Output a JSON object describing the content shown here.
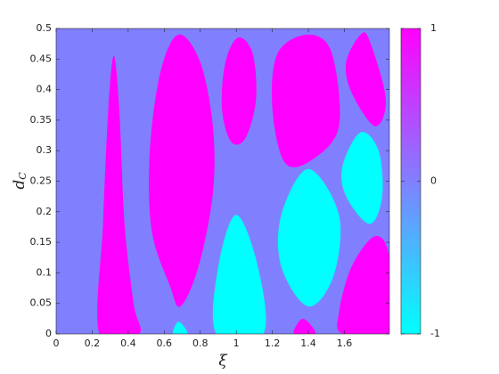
{
  "chart_data": {
    "type": "region",
    "xlabel": "ξ",
    "ylabel": {
      "text": "d",
      "subscript": "C"
    },
    "xlim": [
      0,
      1.85
    ],
    "xticks": [
      0,
      0.2,
      0.4,
      0.6,
      0.8,
      1,
      1.2,
      1.4,
      1.6
    ],
    "ylim": [
      0,
      0.5
    ],
    "yticks": [
      0,
      0.05,
      0.1,
      0.15,
      0.2,
      0.25,
      0.3,
      0.35,
      0.4,
      0.45,
      0.5
    ],
    "background_value": 0,
    "colormap": [
      {
        "value": -1,
        "color": "#00ffff"
      },
      {
        "value": 0,
        "color": "#8080ff"
      },
      {
        "value": 1,
        "color": "#ff00ff"
      }
    ],
    "clim": [
      -1,
      1
    ],
    "cticks": [
      -1,
      0,
      1
    ],
    "regions": [
      {
        "value": 1,
        "x": [
          0.24,
          0.26,
          0.29,
          0.32,
          0.35,
          0.38,
          0.43,
          0.46
        ],
        "y": [
          0,
          0.18,
          0.37,
          0.455,
          0.37,
          0.18,
          0.05,
          0
        ]
      },
      {
        "value": 1,
        "x": [
          0.68,
          0.58,
          0.52,
          0.53,
          0.63,
          0.69,
          0.79,
          0.87,
          0.87,
          0.8
        ],
        "y": [
          0.49,
          0.43,
          0.3,
          0.17,
          0.08,
          0.045,
          0.11,
          0.23,
          0.34,
          0.445
        ]
      },
      {
        "value": 1,
        "x": [
          1.01,
          0.94,
          0.92,
          0.97,
          1.05,
          1.11,
          1.09
        ],
        "y": [
          0.485,
          0.445,
          0.37,
          0.315,
          0.32,
          0.385,
          0.46
        ]
      },
      {
        "value": 1,
        "x": [
          1.4,
          1.23,
          1.2,
          1.27,
          1.42,
          1.57,
          1.53
        ],
        "y": [
          0.49,
          0.46,
          0.37,
          0.28,
          0.285,
          0.34,
          0.46
        ]
      },
      {
        "value": 1,
        "x": [
          1.69,
          1.61,
          1.64,
          1.77,
          1.83,
          1.74
        ],
        "y": [
          0.49,
          0.445,
          0.395,
          0.34,
          0.385,
          0.48
        ]
      },
      {
        "value": 1,
        "x": [
          1.77,
          1.64,
          1.57,
          1.59,
          1.85,
          1.85
        ],
        "y": [
          0.16,
          0.11,
          0.035,
          0,
          0,
          0.125
        ]
      },
      {
        "value": 1,
        "x": [
          1.37,
          1.32,
          1.44
        ],
        "y": [
          0.025,
          0,
          0
        ]
      },
      {
        "value": -1,
        "x": [
          1.0,
          0.9,
          0.89,
          1.15,
          1.12
        ],
        "y": [
          0.195,
          0.11,
          0,
          0,
          0.11
        ]
      },
      {
        "value": -1,
        "x": [
          1.4,
          1.25,
          1.25,
          1.4,
          1.54,
          1.57
        ],
        "y": [
          0.27,
          0.195,
          0.11,
          0.045,
          0.095,
          0.195
        ]
      },
      {
        "value": -1,
        "x": [
          1.69,
          1.59,
          1.61,
          1.74,
          1.81,
          1.79
        ],
        "y": [
          0.33,
          0.275,
          0.225,
          0.18,
          0.225,
          0.3
        ]
      },
      {
        "value": -1,
        "x": [
          0.68,
          0.65,
          0.73
        ],
        "y": [
          0.02,
          0,
          0
        ]
      }
    ]
  }
}
